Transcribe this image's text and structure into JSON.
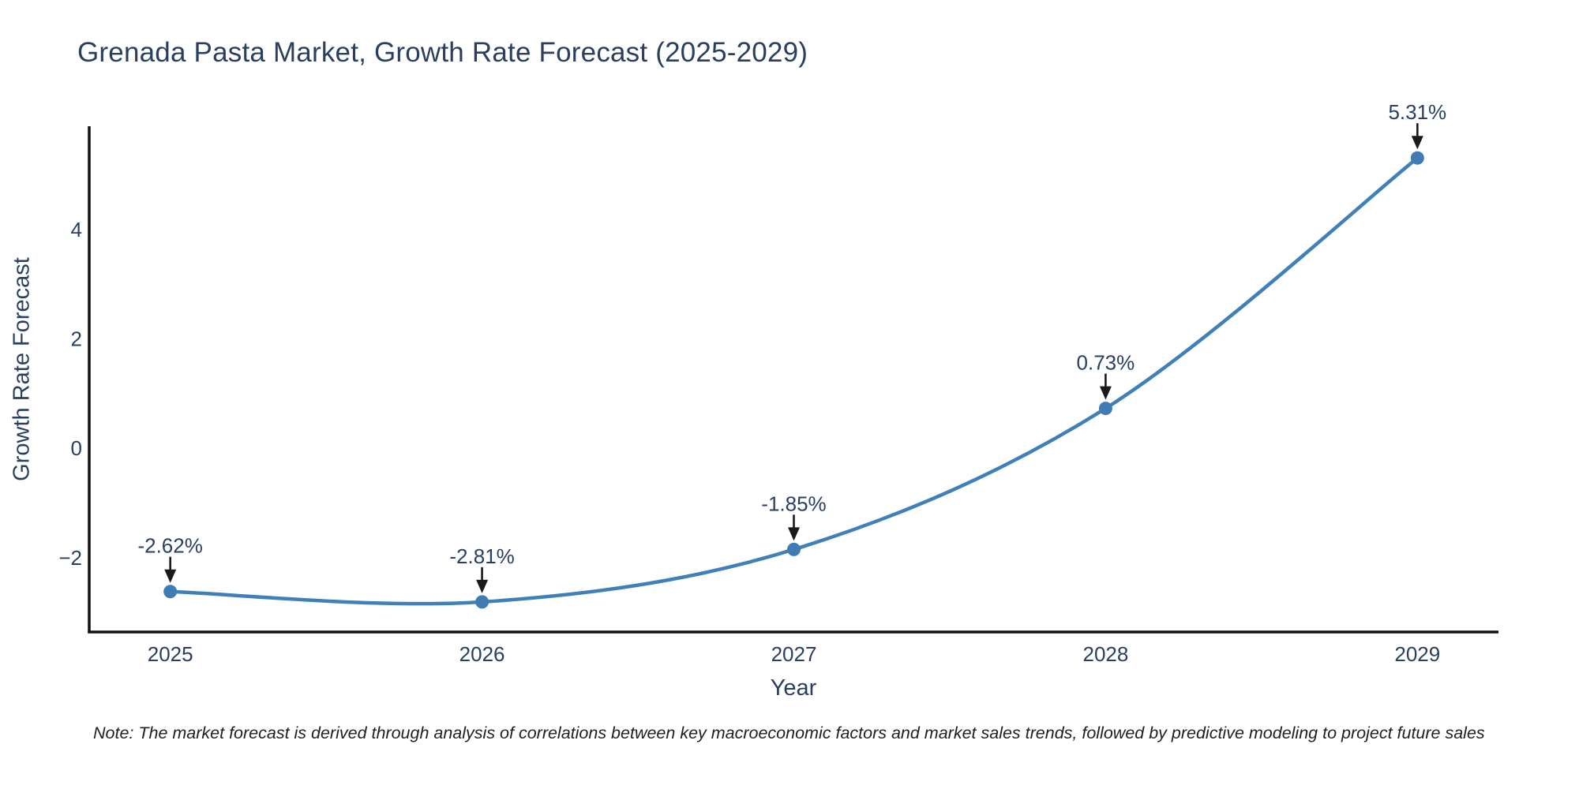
{
  "note": "Note: The market forecast is derived through analysis of correlations between key macroeconomic factors and market sales trends, followed by predictive modeling to project future sales",
  "colors": {
    "text": "#2a3f5f",
    "line": "#4080b8",
    "marker": "#3f7cb4",
    "axis": "#111111",
    "arrow": "#1a1a1a",
    "background": "#ffffff"
  },
  "chart_data": {
    "type": "line",
    "title": "Grenada Pasta Market, Growth Rate Forecast (2025-2029)",
    "xlabel": "Year",
    "ylabel": "Growth Rate Forecast",
    "x": [
      2025,
      2026,
      2027,
      2028,
      2029
    ],
    "series": [
      {
        "name": "Growth Rate Forecast",
        "values": [
          -2.62,
          -2.81,
          -1.85,
          0.73,
          5.31
        ]
      }
    ],
    "point_labels": [
      "-2.62%",
      "-2.81%",
      "-1.85%",
      "0.73%",
      "5.31%"
    ],
    "xticks": [
      "2025",
      "2026",
      "2027",
      "2028",
      "2029"
    ],
    "yticks": [
      -2,
      0,
      2,
      4
    ],
    "xlim": [
      2024.74,
      2029.26
    ],
    "ylim": [
      -3.36,
      5.89
    ],
    "grid": false,
    "legend": false,
    "line_shape": "spline",
    "annotations_arrow": true
  }
}
